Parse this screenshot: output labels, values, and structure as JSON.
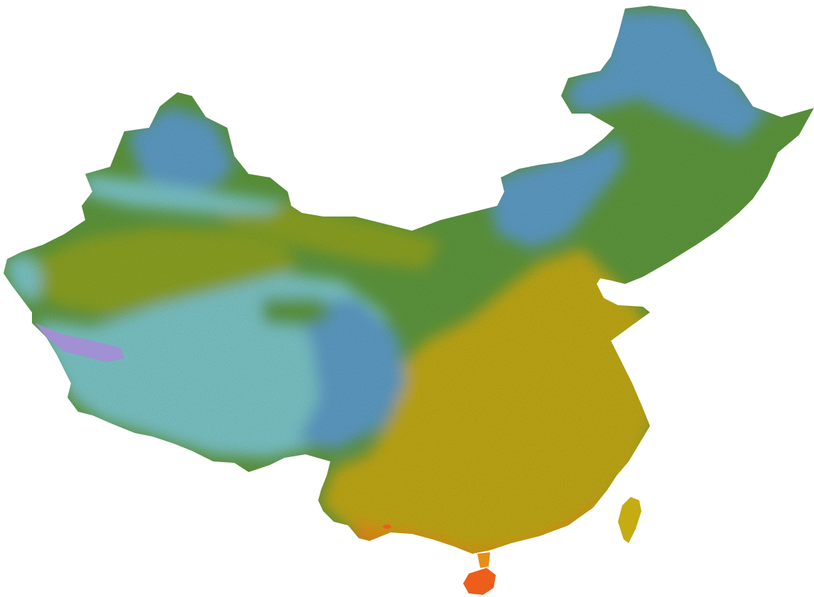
{
  "map": {
    "background_color": "#ffffff",
    "palette": {
      "cold_violet": "#a98ad8",
      "cool_cyan": "#7ec9cb",
      "cool_blue": "#5f9fc9",
      "temperate_green": "#5f9a3e",
      "olive": "#8ea524",
      "warm_yellow": "#c4ac12",
      "orange": "#e88e14",
      "hot_orange_red": "#ec5e1a"
    },
    "regions": [
      {
        "name": "mainland-land-mass",
        "fill": "temperate_green"
      },
      {
        "name": "northeast-region",
        "fill": "cool_blue"
      },
      {
        "name": "inner-mongolia-band",
        "fill": "cool_blue"
      },
      {
        "name": "dzungaria-region",
        "fill": "cool_blue"
      },
      {
        "name": "tarim-basin",
        "fill": "olive"
      },
      {
        "name": "tibetan-plateau",
        "fill": "cool_cyan"
      },
      {
        "name": "western-tibet-cold-patch",
        "fill": "cold_violet"
      },
      {
        "name": "southeast-region",
        "fill": "warm_yellow"
      },
      {
        "name": "south-coast-region",
        "fill": "orange"
      },
      {
        "name": "taiwan-island",
        "fill": "warm_yellow"
      },
      {
        "name": "hainan-island",
        "fill": "hot_orange_red"
      }
    ]
  }
}
